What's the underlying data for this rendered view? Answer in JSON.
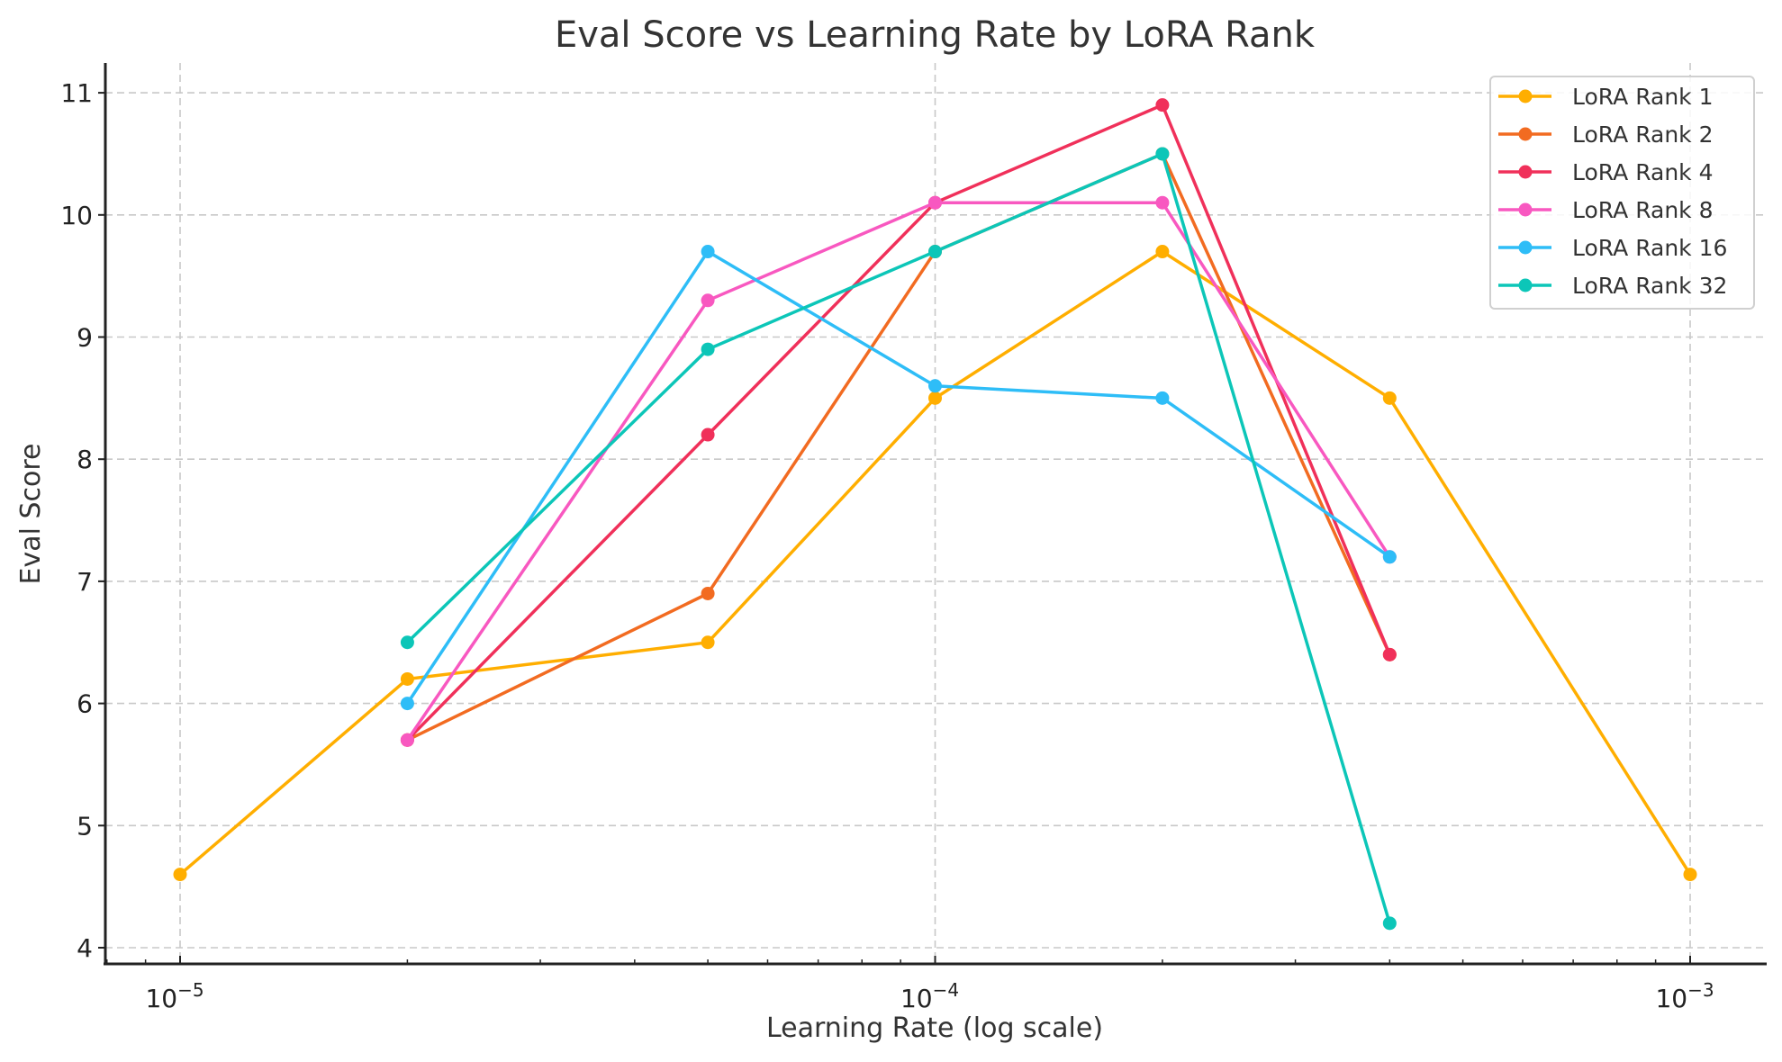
{
  "chart_data": {
    "type": "line",
    "title": "Eval Score vs Learning Rate by LoRA Rank",
    "xlabel": "Learning Rate (log scale)",
    "ylabel": "Eval Score",
    "xscale": "log",
    "xlim": [
      8.3e-06,
      0.00115
    ],
    "ylim": [
      3.83,
      11.24
    ],
    "x_ticks": [
      {
        "value": 1e-05,
        "base": "10",
        "exp": "−5"
      },
      {
        "value": 0.0001,
        "base": "10",
        "exp": "−4"
      },
      {
        "value": 0.001,
        "base": "10",
        "exp": "−3"
      }
    ],
    "y_ticks": [
      4,
      5,
      6,
      7,
      8,
      9,
      10,
      11
    ],
    "grid": true,
    "legend_position": "top-right",
    "series": [
      {
        "name": "LoRA Rank 1",
        "color": "#FFAE00",
        "x": [
          1e-05,
          2e-05,
          5e-05,
          0.0001,
          0.0002,
          0.0004,
          0.001
        ],
        "values": [
          4.6,
          6.2,
          6.5,
          8.5,
          9.7,
          8.5,
          4.6
        ]
      },
      {
        "name": "LoRA Rank 2",
        "color": "#F26B21",
        "x": [
          2e-05,
          5e-05,
          0.0001,
          0.0002,
          0.0004
        ],
        "values": [
          5.7,
          6.9,
          9.7,
          10.5,
          6.4
        ]
      },
      {
        "name": "LoRA Rank 4",
        "color": "#F0305A",
        "x": [
          2e-05,
          5e-05,
          0.0001,
          0.0002,
          0.0004
        ],
        "values": [
          5.7,
          8.2,
          10.1,
          10.9,
          6.4
        ]
      },
      {
        "name": "LoRA Rank 8",
        "color": "#F858C0",
        "x": [
          2e-05,
          5e-05,
          0.0001,
          0.0002,
          0.0004
        ],
        "values": [
          5.7,
          9.3,
          10.1,
          10.1,
          7.2
        ]
      },
      {
        "name": "LoRA Rank 16",
        "color": "#2EBDF7",
        "x": [
          2e-05,
          5e-05,
          0.0001,
          0.0002,
          0.0004
        ],
        "values": [
          6.0,
          9.7,
          8.6,
          8.5,
          7.2
        ]
      },
      {
        "name": "LoRA Rank 32",
        "color": "#0CC6B8",
        "x": [
          2e-05,
          5e-05,
          0.0001,
          0.0002,
          0.0004
        ],
        "values": [
          6.5,
          8.9,
          9.7,
          10.5,
          4.2
        ]
      }
    ]
  }
}
